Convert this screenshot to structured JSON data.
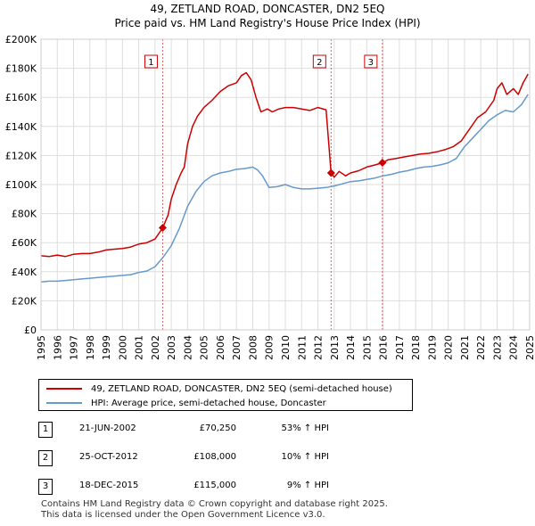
{
  "chart_data": {
    "type": "line",
    "title": "49, ZETLAND ROAD, DONCASTER, DN2 5EQ",
    "subtitle": "Price paid vs. HM Land Registry's House Price Index (HPI)",
    "xlim": [
      1995,
      2025
    ],
    "ylim": [
      0,
      200000
    ],
    "x_ticks": [
      1995,
      1996,
      1997,
      1998,
      1999,
      2000,
      2001,
      2002,
      2003,
      2004,
      2005,
      2006,
      2007,
      2008,
      2009,
      2010,
      2011,
      2012,
      2013,
      2014,
      2015,
      2016,
      2017,
      2018,
      2019,
      2020,
      2021,
      2022,
      2023,
      2024,
      2025
    ],
    "y_ticks": [
      {
        "value": 0,
        "label": "£0"
      },
      {
        "value": 20000,
        "label": "£20K"
      },
      {
        "value": 40000,
        "label": "£40K"
      },
      {
        "value": 60000,
        "label": "£60K"
      },
      {
        "value": 80000,
        "label": "£80K"
      },
      {
        "value": 100000,
        "label": "£100K"
      },
      {
        "value": 120000,
        "label": "£120K"
      },
      {
        "value": 140000,
        "label": "£140K"
      },
      {
        "value": 160000,
        "label": "£160K"
      },
      {
        "value": 180000,
        "label": "£180K"
      },
      {
        "value": 200000,
        "label": "£200K"
      }
    ],
    "grid": true,
    "series": [
      {
        "name": "49, ZETLAND ROAD, DONCASTER, DN2 5EQ (semi-detached house)",
        "color": "#cc0000",
        "x": [
          1995.0,
          1995.5,
          1996.0,
          1996.5,
          1997.0,
          1997.5,
          1998.0,
          1998.5,
          1999.0,
          1999.5,
          2000.0,
          2000.5,
          2001.0,
          2001.5,
          2002.0,
          2002.47,
          2002.8,
          2003.0,
          2003.3,
          2003.6,
          2003.8,
          2004.0,
          2004.3,
          2004.6,
          2005.0,
          2005.5,
          2006.0,
          2006.5,
          2007.0,
          2007.3,
          2007.6,
          2007.9,
          2008.2,
          2008.5,
          2008.9,
          2009.2,
          2009.6,
          2010.0,
          2010.5,
          2011.0,
          2011.5,
          2012.0,
          2012.5,
          2012.81,
          2013.0,
          2013.3,
          2013.7,
          2014.0,
          2014.5,
          2015.0,
          2015.5,
          2015.96,
          2016.3,
          2016.8,
          2017.3,
          2017.8,
          2018.3,
          2018.8,
          2019.3,
          2019.8,
          2020.3,
          2020.8,
          2021.3,
          2021.8,
          2022.3,
          2022.8,
          2023.0,
          2023.3,
          2023.6,
          2024.0,
          2024.3,
          2024.6,
          2024.9
        ],
        "values": [
          51000,
          50500,
          51500,
          50500,
          52000,
          52500,
          52500,
          53500,
          55000,
          55500,
          56000,
          57000,
          59000,
          60000,
          62500,
          70250,
          79000,
          90000,
          100000,
          108000,
          112000,
          128000,
          140000,
          147000,
          153000,
          158000,
          164000,
          168000,
          170000,
          175000,
          177000,
          172000,
          160000,
          150000,
          152000,
          150000,
          152000,
          153000,
          153000,
          152000,
          151000,
          153000,
          151500,
          108000,
          105000,
          109000,
          106000,
          108000,
          109500,
          112000,
          113500,
          115000,
          117000,
          118000,
          119000,
          120000,
          121000,
          121500,
          122500,
          124000,
          126000,
          130000,
          138000,
          146000,
          150000,
          158000,
          166000,
          170000,
          162000,
          166000,
          162000,
          170000,
          176000
        ]
      },
      {
        "name": "HPI: Average price, semi-detached house, Doncaster",
        "color": "#6699cc",
        "x": [
          1995.0,
          1995.5,
          1996.0,
          1996.5,
          1997.0,
          1997.5,
          1998.0,
          1998.5,
          1999.0,
          1999.5,
          2000.0,
          2000.5,
          2001.0,
          2001.5,
          2002.0,
          2002.5,
          2003.0,
          2003.5,
          2004.0,
          2004.5,
          2005.0,
          2005.5,
          2006.0,
          2006.5,
          2007.0,
          2007.5,
          2008.0,
          2008.3,
          2008.6,
          2009.0,
          2009.5,
          2010.0,
          2010.5,
          2011.0,
          2011.5,
          2012.0,
          2012.5,
          2013.0,
          2013.5,
          2014.0,
          2014.5,
          2015.0,
          2015.5,
          2016.0,
          2016.5,
          2017.0,
          2017.5,
          2018.0,
          2018.5,
          2019.0,
          2019.5,
          2020.0,
          2020.5,
          2021.0,
          2021.5,
          2022.0,
          2022.5,
          2023.0,
          2023.5,
          2024.0,
          2024.5,
          2024.9
        ],
        "values": [
          33000,
          33500,
          33500,
          34000,
          34500,
          35000,
          35500,
          36000,
          36500,
          37000,
          37500,
          38000,
          39500,
          40500,
          43500,
          50000,
          58000,
          70000,
          85000,
          95000,
          102000,
          106000,
          108000,
          109000,
          110500,
          111000,
          112000,
          110000,
          106000,
          98000,
          98500,
          100000,
          98000,
          97000,
          97000,
          97500,
          98000,
          99000,
          100500,
          102000,
          102500,
          103500,
          104500,
          106000,
          107000,
          108500,
          109500,
          111000,
          112000,
          112500,
          113500,
          115000,
          118000,
          126000,
          132000,
          138000,
          144000,
          148000,
          151000,
          150000,
          155000,
          162000
        ]
      }
    ],
    "sales": [
      {
        "num": "1",
        "year": 2002.47,
        "price": 70250,
        "date": "21-JUN-2002",
        "price_label": "£70,250",
        "hpi": "53% ↑ HPI"
      },
      {
        "num": "2",
        "year": 2012.81,
        "price": 108000,
        "date": "25-OCT-2012",
        "price_label": "£108,000",
        "hpi": "10% ↑ HPI"
      },
      {
        "num": "3",
        "year": 2015.96,
        "price": 115000,
        "date": "18-DEC-2015",
        "price_label": "£115,000",
        "hpi": "9% ↑ HPI"
      }
    ]
  },
  "legend": {
    "property_label": "49, ZETLAND ROAD, DONCASTER, DN2 5EQ (semi-detached house)",
    "hpi_label": "HPI: Average price, semi-detached house, Doncaster",
    "property_color": "#cc0000",
    "hpi_color": "#6699cc"
  },
  "footer": {
    "line1": "Contains HM Land Registry data © Crown copyright and database right 2025.",
    "line2": "This data is licensed under the Open Government Licence v3.0."
  }
}
